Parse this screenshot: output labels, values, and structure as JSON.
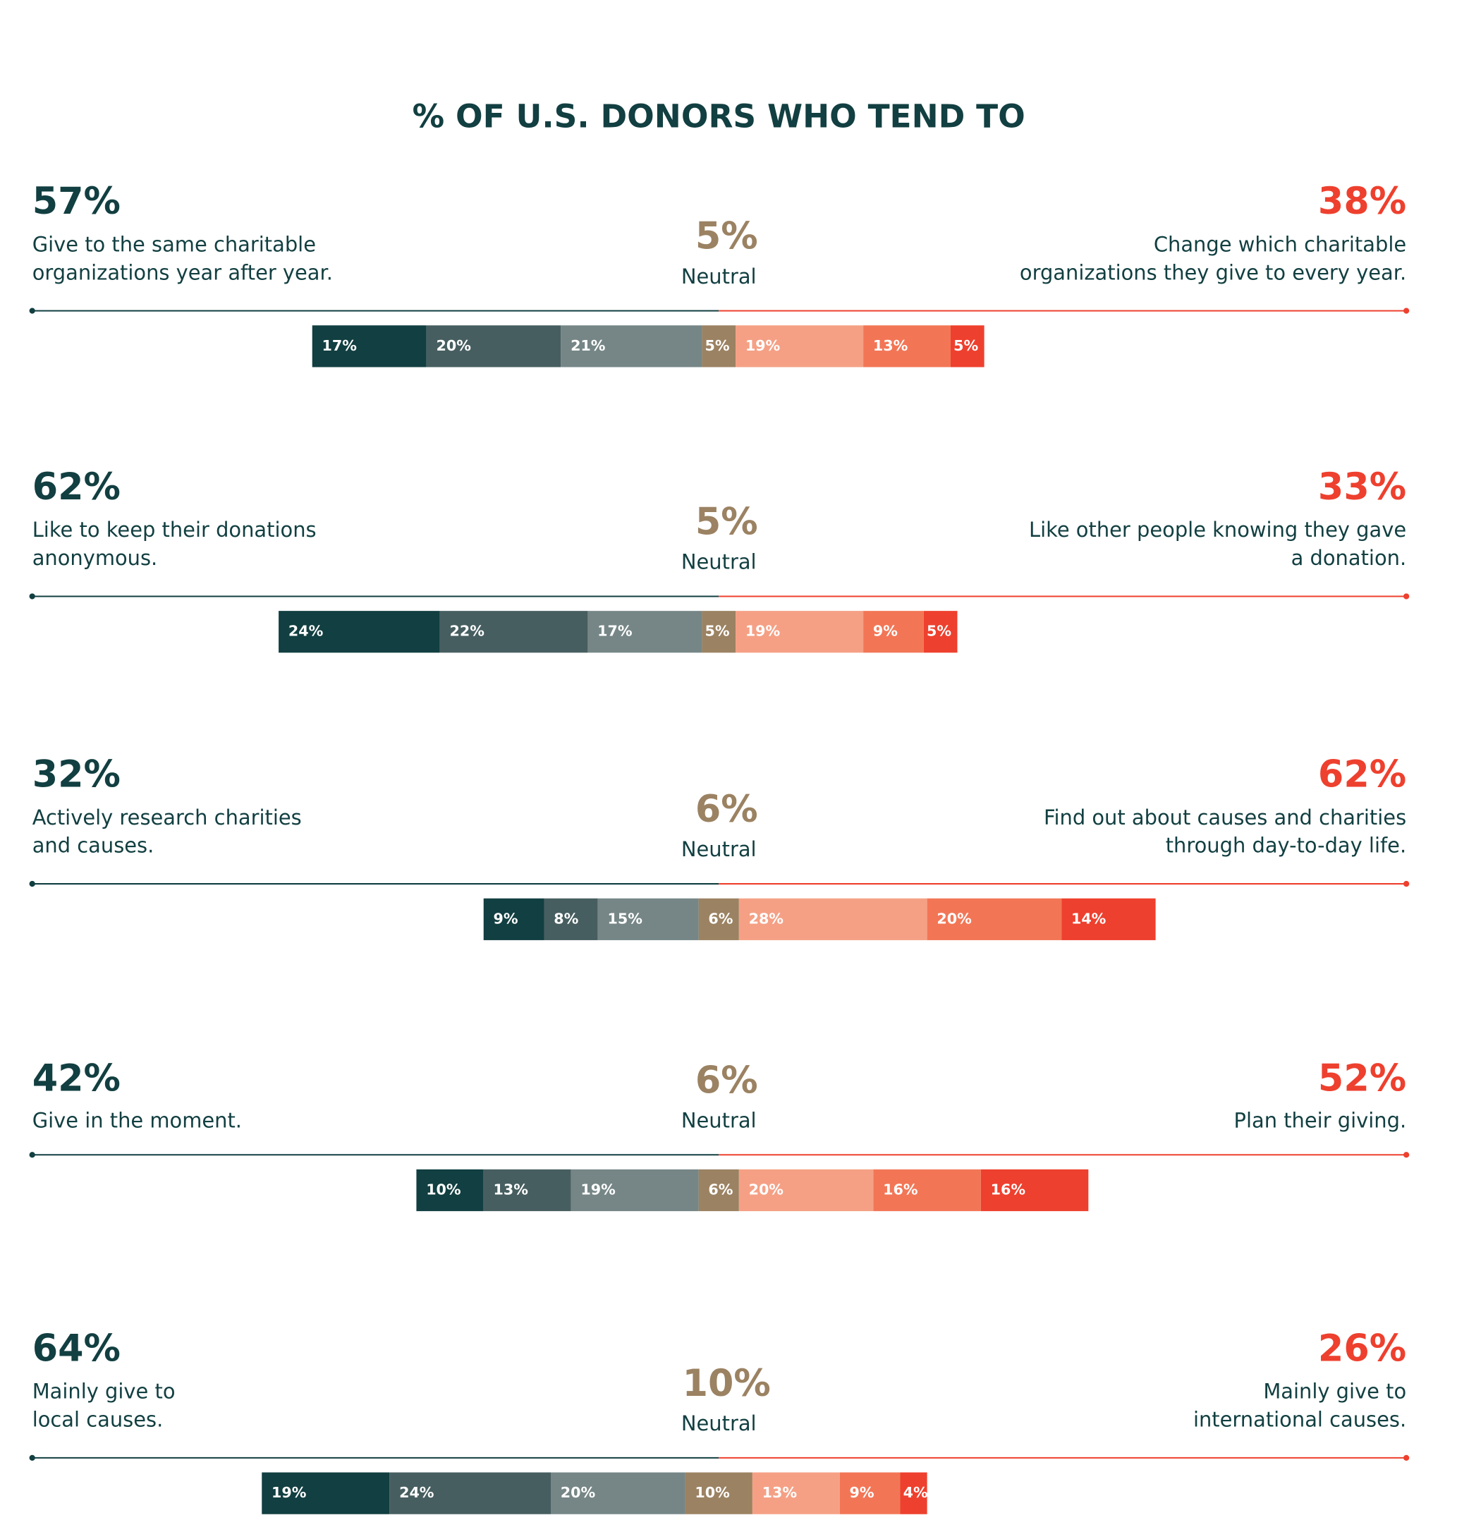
{
  "chart_data": {
    "type": "diverging-stacked-bar",
    "title": "% OF U.S. DONORS WHO TEND TO",
    "colors": [
      "#123f41",
      "#475e60",
      "#768686",
      "#9b8262",
      "#f5a085",
      "#f27656",
      "#ee402e"
    ],
    "rows": [
      {
        "left": {
          "value": 57,
          "label": "57%",
          "text": [
            "Give to the same charitable",
            "organizations year after year."
          ]
        },
        "neutral": {
          "value": 5,
          "label": "5%",
          "text": "Neutral"
        },
        "right": {
          "value": 38,
          "label": "38%",
          "text": [
            "Change which charitable",
            "organizations they give to every year."
          ]
        },
        "values": [
          17,
          20,
          21,
          5,
          19,
          13,
          5
        ],
        "value_labels": [
          "17%",
          "20%",
          "21%",
          "5%",
          "19%",
          "13%",
          "5%"
        ]
      },
      {
        "left": {
          "value": 62,
          "label": "62%",
          "text": [
            "Like to keep their donations",
            "anonymous."
          ]
        },
        "neutral": {
          "value": 5,
          "label": "5%",
          "text": "Neutral"
        },
        "right": {
          "value": 33,
          "label": "33%",
          "text": [
            "Like other people knowing they gave",
            "a donation."
          ]
        },
        "values": [
          24,
          22,
          17,
          5,
          19,
          9,
          5
        ],
        "value_labels": [
          "24%",
          "22%",
          "17%",
          "5%",
          "19%",
          "9%",
          "5%"
        ]
      },
      {
        "left": {
          "value": 32,
          "label": "32%",
          "text": [
            "Actively research charities",
            "and causes."
          ]
        },
        "neutral": {
          "value": 6,
          "label": "6%",
          "text": "Neutral"
        },
        "right": {
          "value": 62,
          "label": "62%",
          "text": [
            "Find out about causes and charities",
            "through day-to-day life."
          ]
        },
        "values": [
          9,
          8,
          15,
          6,
          28,
          20,
          14
        ],
        "value_labels": [
          "9%",
          "8%",
          "15%",
          "6%",
          "28%",
          "20%",
          "14%"
        ]
      },
      {
        "left": {
          "value": 42,
          "label": "42%",
          "text": [
            "Give in the moment."
          ]
        },
        "neutral": {
          "value": 6,
          "label": "6%",
          "text": "Neutral"
        },
        "right": {
          "value": 52,
          "label": "52%",
          "text": [
            "Plan their giving."
          ]
        },
        "values": [
          10,
          13,
          19,
          6,
          20,
          16,
          16
        ],
        "value_labels": [
          "10%",
          "13%",
          "19%",
          "6%",
          "20%",
          "16%",
          "16%"
        ]
      },
      {
        "left": {
          "value": 64,
          "label": "64%",
          "text": [
            "Mainly give to",
            "local causes."
          ]
        },
        "neutral": {
          "value": 10,
          "label": "10%",
          "text": "Neutral"
        },
        "right": {
          "value": 26,
          "label": "26%",
          "text": [
            "Mainly give to",
            "international causes."
          ]
        },
        "values": [
          19,
          24,
          20,
          10,
          13,
          9,
          4
        ],
        "value_labels": [
          "19%",
          "24%",
          "20%",
          "10%",
          "13%",
          "9%",
          "4%"
        ]
      }
    ]
  }
}
